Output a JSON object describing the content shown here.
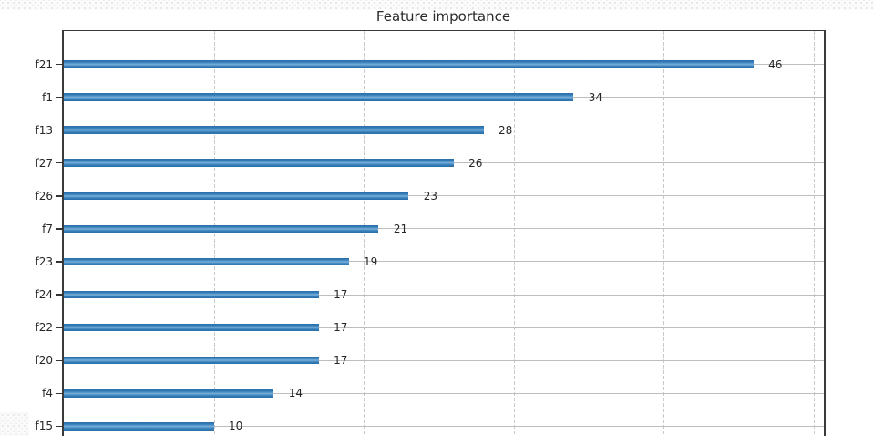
{
  "chart_data": {
    "type": "bar",
    "orientation": "horizontal",
    "title": "Feature importance",
    "categories": [
      "f21",
      "f1",
      "f13",
      "f27",
      "f26",
      "f7",
      "f23",
      "f24",
      "f22",
      "f20",
      "f4",
      "f15"
    ],
    "values": [
      46,
      34,
      28,
      26,
      23,
      21,
      19,
      17,
      17,
      17,
      14,
      10
    ],
    "value_labels": [
      "46",
      "34",
      "28",
      "26",
      "23",
      "21",
      "19",
      "17",
      "17",
      "17",
      "14",
      "10"
    ],
    "x_gridline_values": [
      10,
      20,
      30,
      40,
      50
    ],
    "xlim": [
      0,
      50.7
    ],
    "grid": true,
    "legend": "none",
    "x_axis_labels_visible": false,
    "bottom_cut_off": true,
    "colors": {
      "bar": "#3b82bd",
      "bar_edge": "#2b6ea9",
      "bar_highlight": "#79b0da",
      "gridline": "#c6c6c6",
      "axis": "#3a3a3a",
      "text": "#262626"
    }
  }
}
